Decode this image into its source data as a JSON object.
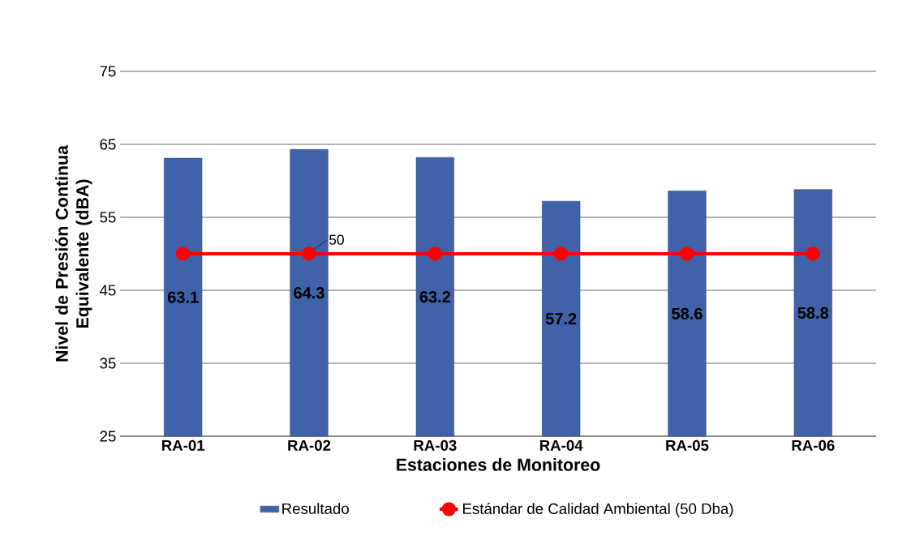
{
  "chart_data": {
    "type": "bar",
    "xlabel": "Estaciones de Monitoreo",
    "ylabel": "Nivel de Presión Continua Equivalente (dBA)",
    "categories": [
      "RA-01",
      "RA-02",
      "RA-03",
      "RA-04",
      "RA-05",
      "RA-06"
    ],
    "series": [
      {
        "name": "Resultado",
        "color": "#3f62a8",
        "values": [
          63.1,
          64.3,
          63.2,
          57.2,
          58.6,
          58.8
        ],
        "data_labels": true
      },
      {
        "name": "Estándar de Calidad Ambiental (50 Dba)",
        "type": "line",
        "color": "#ff0000",
        "marker": "circle",
        "values": [
          50,
          50,
          50,
          50,
          50,
          50
        ],
        "value_labels": [
          null,
          "50",
          null,
          null,
          null,
          null
        ]
      }
    ],
    "ylim": [
      25,
      75
    ],
    "yticks": [
      25,
      35,
      45,
      55,
      65,
      75
    ],
    "grid": "y",
    "legend": "bottom"
  }
}
